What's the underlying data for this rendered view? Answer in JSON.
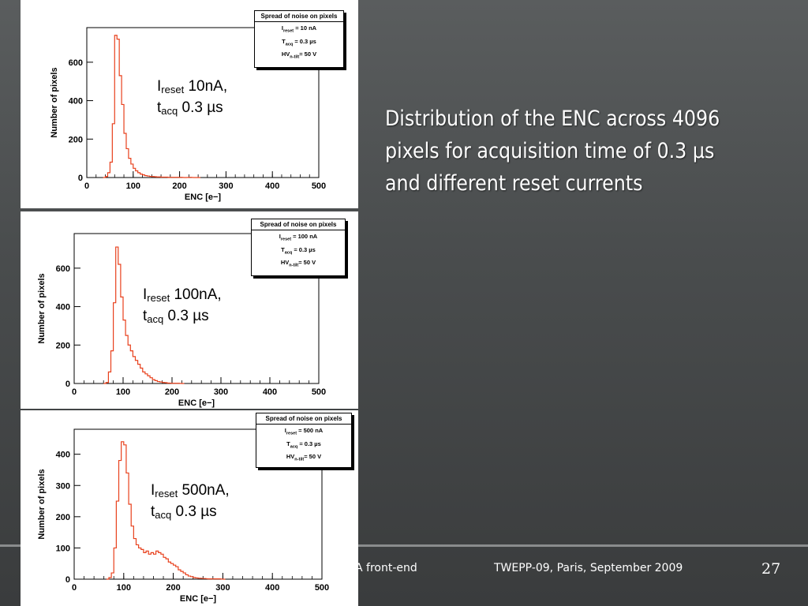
{
  "description": "Distribution of the ENC across 4096 pixels for acquisition time of 0.3 µs and different reset currents",
  "footer": {
    "left": "A front-end",
    "center": "TWEPP-09, Paris, September 2009",
    "page": "27"
  },
  "chart_data": [
    {
      "type": "bar",
      "legend_title": "Spread of noise on pixels",
      "legend_lines": [
        "I_reset = 10 nA",
        "T_acq = 0.3 µs",
        "HV_n-tilt = 50 V"
      ],
      "annotation": {
        "line1_main": "I",
        "line1_sub": "reset",
        "line1_rest": " 10nA,",
        "line2_main": "t",
        "line2_sub": "acq",
        "line2_rest": " 0.3 µs"
      },
      "xlabel": "ENC [e−]",
      "ylabel": "Number of pixels",
      "xlim": [
        0,
        500
      ],
      "ylim": [
        0,
        780
      ],
      "xticks": [
        0,
        100,
        200,
        300,
        400,
        500
      ],
      "yticks": [
        0,
        200,
        400,
        600
      ],
      "bin_width": 5,
      "x": [
        35,
        40,
        45,
        50,
        55,
        60,
        65,
        70,
        75,
        80,
        85,
        90,
        95,
        100,
        105,
        110,
        115,
        120,
        125,
        130,
        135,
        140,
        145,
        150,
        155,
        160,
        165,
        170,
        175,
        180,
        185,
        190,
        195,
        200,
        210,
        220,
        230,
        240
      ],
      "values": [
        0,
        5,
        25,
        80,
        280,
        740,
        720,
        530,
        380,
        230,
        150,
        100,
        70,
        48,
        35,
        25,
        18,
        14,
        10,
        8,
        6,
        5,
        4,
        3,
        3,
        2,
        2,
        2,
        1,
        1,
        1,
        1,
        1,
        1,
        0,
        1,
        0,
        0
      ]
    },
    {
      "type": "bar",
      "legend_title": "Spread of noise on pixels",
      "legend_lines": [
        "I_reset = 100 nA",
        "T_acq = 0.3 µs",
        "HV_n-tilt = 50 V"
      ],
      "annotation": {
        "line1_main": "I",
        "line1_sub": "reset",
        "line1_rest": " 100nA,",
        "line2_main": "t",
        "line2_sub": "acq",
        "line2_rest": " 0.3 µs"
      },
      "xlabel": "ENC [e−]",
      "ylabel": "Number of pixels",
      "xlim": [
        0,
        500
      ],
      "ylim": [
        0,
        780
      ],
      "xticks": [
        0,
        100,
        200,
        300,
        400,
        500
      ],
      "yticks": [
        0,
        200,
        400,
        600
      ],
      "bin_width": 5,
      "x": [
        60,
        65,
        70,
        75,
        80,
        85,
        90,
        95,
        100,
        105,
        110,
        115,
        120,
        125,
        130,
        135,
        140,
        145,
        150,
        155,
        160,
        165,
        170,
        175,
        180,
        185,
        190,
        200,
        210,
        220
      ],
      "values": [
        0,
        5,
        60,
        170,
        420,
        710,
        620,
        450,
        330,
        250,
        200,
        170,
        140,
        120,
        100,
        80,
        60,
        50,
        40,
        30,
        20,
        15,
        10,
        8,
        5,
        4,
        2,
        1,
        1,
        0
      ]
    },
    {
      "type": "bar",
      "legend_title": "Spread of noise on pixels",
      "legend_lines": [
        "I_reset = 500 nA",
        "T_acq = 0.3 µs",
        "HV_n-tilt = 50 V"
      ],
      "annotation": {
        "line1_main": "I",
        "line1_sub": "reset",
        "line1_rest": " 500nA,",
        "line2_main": "t",
        "line2_sub": "acq",
        "line2_rest": " 0.3 µs"
      },
      "xlabel": "ENC [e−]",
      "ylabel": "Number of pixels",
      "xlim": [
        0,
        500
      ],
      "ylim": [
        0,
        480
      ],
      "xticks": [
        0,
        100,
        200,
        300,
        400,
        500
      ],
      "yticks": [
        0,
        100,
        200,
        300,
        400
      ],
      "bin_width": 5,
      "x": [
        65,
        70,
        75,
        80,
        85,
        90,
        95,
        100,
        105,
        110,
        115,
        120,
        125,
        130,
        135,
        140,
        145,
        150,
        155,
        160,
        165,
        170,
        175,
        180,
        185,
        190,
        195,
        200,
        205,
        210,
        215,
        220,
        225,
        230,
        235,
        240,
        245,
        250,
        260,
        270,
        280,
        290,
        300
      ],
      "values": [
        0,
        5,
        20,
        100,
        250,
        380,
        440,
        430,
        340,
        240,
        170,
        130,
        110,
        100,
        95,
        85,
        90,
        80,
        85,
        80,
        90,
        85,
        80,
        70,
        65,
        55,
        50,
        45,
        40,
        30,
        25,
        20,
        14,
        10,
        8,
        5,
        4,
        3,
        2,
        1,
        1,
        1,
        0
      ]
    }
  ]
}
